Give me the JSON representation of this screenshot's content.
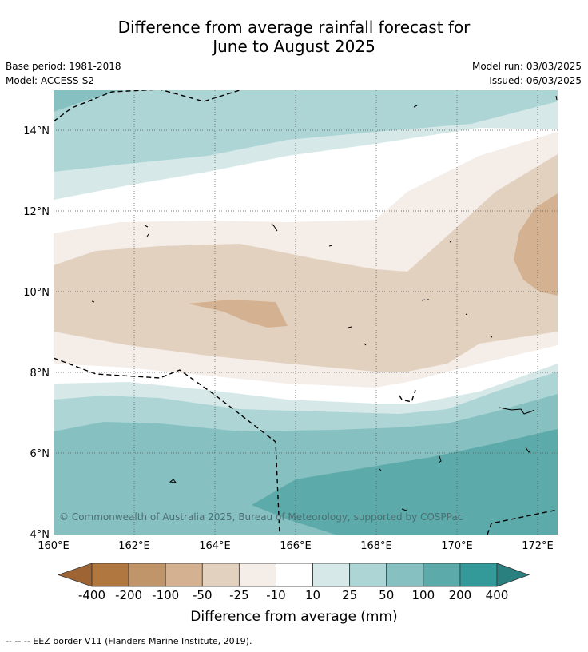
{
  "title": {
    "line1": "Difference from average rainfall forecast for",
    "line2": "June to August 2025"
  },
  "meta": {
    "base_period": "Base period: 1981-2018",
    "model": "Model: ACCESS-S2",
    "model_run": "Model run: 03/03/2025",
    "issued": "Issued: 06/03/2025"
  },
  "map": {
    "lat_ticks": [
      "14°N",
      "12°N",
      "10°N",
      "8°N",
      "6°N",
      "4°N"
    ],
    "lon_ticks": [
      "160°E",
      "162°E",
      "164°E",
      "166°E",
      "168°E",
      "170°E",
      "172°E"
    ],
    "copyright": "© Commonwealth of Australia 2025, Bureau of Meteorology, supported by COSPPac",
    "border_style": "dashed-black",
    "gridlines": "dotted"
  },
  "colorbar": {
    "labels": [
      "-400",
      "-200",
      "-100",
      "-50",
      "-25",
      "-10",
      "10",
      "25",
      "50",
      "100",
      "200",
      "400"
    ],
    "colors": [
      "#9e6434",
      "#b07840",
      "#c0956a",
      "#d4b291",
      "#e3d1c0",
      "#f4ede8",
      "#ffffff",
      "#d6e9e8",
      "#add5d5",
      "#86c0c0",
      "#5caaaa",
      "#349999",
      "#2a7f7f"
    ],
    "title": "Difference from average (mm)"
  },
  "footnote": "--  --  -- EEZ border V11 (Flanders Marine Institute, 2019)."
}
